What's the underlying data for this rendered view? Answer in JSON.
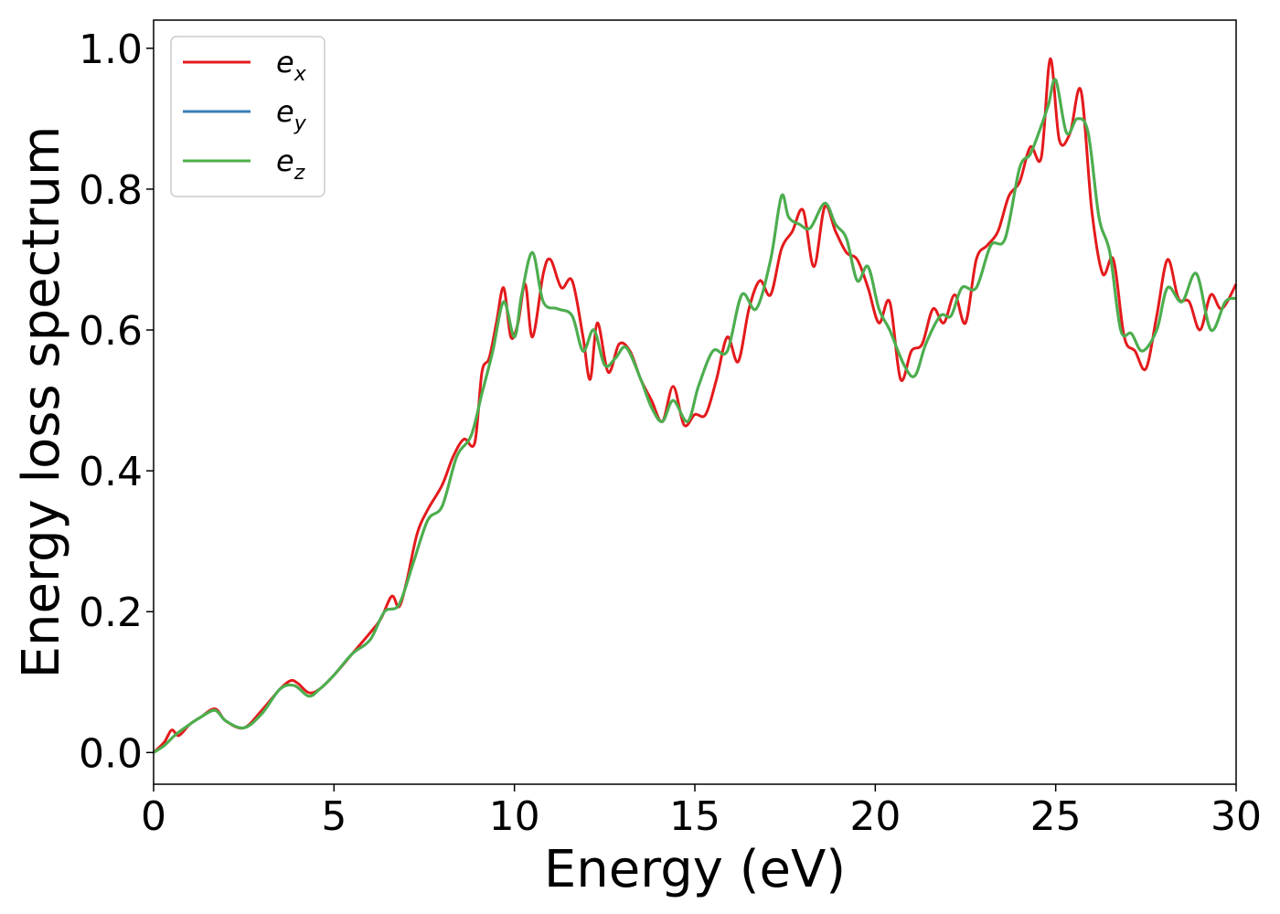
{
  "chart_data": {
    "type": "line",
    "title": "",
    "xlabel": "Energy (eV)",
    "ylabel": "Energy loss spectrum",
    "xlim": [
      0,
      30
    ],
    "ylim": [
      -0.045,
      1.04
    ],
    "xticks": [
      0,
      5,
      10,
      15,
      20,
      25,
      30
    ],
    "xtick_labels": [
      "0",
      "5",
      "10",
      "15",
      "20",
      "25",
      "30"
    ],
    "yticks": [
      0.0,
      0.2,
      0.4,
      0.6,
      0.8,
      1.0
    ],
    "ytick_labels": [
      "0.0",
      "0.2",
      "0.4",
      "0.6",
      "0.8",
      "1.0"
    ],
    "grid": false,
    "legend_position": "top-left",
    "series": [
      {
        "name": "e_x",
        "base": "e",
        "subscript": "x",
        "color": "#e41a1c",
        "x": [
          0,
          0.3,
          0.5,
          0.7,
          1.0,
          1.3,
          1.7,
          2.0,
          2.5,
          3.0,
          3.5,
          3.8,
          4.0,
          4.3,
          4.6,
          5.0,
          5.5,
          6.0,
          6.3,
          6.6,
          6.8,
          7.0,
          7.3,
          7.6,
          8.0,
          8.3,
          8.6,
          8.9,
          9.1,
          9.3,
          9.5,
          9.7,
          9.9,
          10.1,
          10.3,
          10.5,
          10.8,
          11.0,
          11.3,
          11.6,
          11.9,
          12.1,
          12.3,
          12.6,
          12.9,
          13.2,
          13.5,
          13.8,
          14.1,
          14.4,
          14.7,
          15.0,
          15.3,
          15.6,
          15.9,
          16.2,
          16.5,
          16.8,
          17.1,
          17.4,
          17.7,
          18.0,
          18.3,
          18.6,
          18.9,
          19.2,
          19.5,
          19.8,
          20.1,
          20.4,
          20.7,
          21.0,
          21.3,
          21.6,
          21.9,
          22.2,
          22.5,
          22.8,
          23.1,
          23.4,
          23.7,
          24.0,
          24.3,
          24.6,
          24.85,
          25.1,
          25.4,
          25.7,
          26.0,
          26.3,
          26.6,
          26.9,
          27.2,
          27.5,
          27.8,
          28.1,
          28.4,
          28.7,
          29.0,
          29.3,
          29.6,
          30.0
        ],
        "y": [
          0.0,
          0.015,
          0.032,
          0.024,
          0.04,
          0.05,
          0.062,
          0.045,
          0.035,
          0.06,
          0.09,
          0.102,
          0.098,
          0.085,
          0.09,
          0.11,
          0.14,
          0.17,
          0.19,
          0.222,
          0.207,
          0.24,
          0.31,
          0.345,
          0.38,
          0.42,
          0.445,
          0.44,
          0.54,
          0.56,
          0.61,
          0.66,
          0.59,
          0.61,
          0.665,
          0.59,
          0.68,
          0.7,
          0.66,
          0.67,
          0.59,
          0.53,
          0.61,
          0.54,
          0.58,
          0.57,
          0.53,
          0.5,
          0.47,
          0.52,
          0.465,
          0.48,
          0.48,
          0.53,
          0.59,
          0.555,
          0.63,
          0.67,
          0.65,
          0.715,
          0.74,
          0.77,
          0.69,
          0.775,
          0.74,
          0.71,
          0.7,
          0.66,
          0.61,
          0.64,
          0.53,
          0.57,
          0.58,
          0.63,
          0.61,
          0.65,
          0.61,
          0.7,
          0.72,
          0.74,
          0.79,
          0.81,
          0.86,
          0.845,
          0.985,
          0.87,
          0.88,
          0.94,
          0.77,
          0.68,
          0.7,
          0.59,
          0.57,
          0.545,
          0.62,
          0.7,
          0.645,
          0.64,
          0.6,
          0.65,
          0.63,
          0.665
        ]
      },
      {
        "name": "e_y",
        "base": "e",
        "subscript": "y",
        "color": "#377eb8",
        "x": [
          0,
          0.3,
          0.6,
          1.0,
          1.3,
          1.7,
          2.0,
          2.5,
          3.0,
          3.5,
          3.9,
          4.3,
          4.6,
          5.0,
          5.5,
          6.0,
          6.4,
          6.8,
          7.2,
          7.6,
          8.0,
          8.4,
          8.8,
          9.1,
          9.4,
          9.7,
          10.0,
          10.2,
          10.5,
          10.8,
          11.2,
          11.6,
          11.9,
          12.2,
          12.5,
          12.8,
          13.1,
          13.5,
          13.8,
          14.1,
          14.4,
          14.8,
          15.1,
          15.5,
          15.9,
          16.3,
          16.7,
          17.1,
          17.4,
          17.6,
          17.9,
          18.2,
          18.6,
          18.9,
          19.2,
          19.5,
          19.8,
          20.1,
          20.4,
          20.8,
          21.1,
          21.4,
          21.8,
          22.1,
          22.4,
          22.8,
          23.2,
          23.6,
          24.0,
          24.3,
          24.6,
          24.8,
          25.0,
          25.3,
          25.6,
          25.9,
          26.2,
          26.5,
          26.8,
          27.1,
          27.4,
          27.8,
          28.1,
          28.5,
          28.9,
          29.3,
          29.7,
          30.0
        ],
        "y": [
          0.0,
          0.01,
          0.025,
          0.04,
          0.05,
          0.06,
          0.045,
          0.035,
          0.055,
          0.09,
          0.095,
          0.08,
          0.09,
          0.11,
          0.14,
          0.16,
          0.2,
          0.21,
          0.27,
          0.33,
          0.35,
          0.42,
          0.45,
          0.51,
          0.57,
          0.64,
          0.59,
          0.65,
          0.71,
          0.64,
          0.63,
          0.62,
          0.57,
          0.6,
          0.55,
          0.56,
          0.575,
          0.53,
          0.49,
          0.47,
          0.5,
          0.47,
          0.52,
          0.57,
          0.57,
          0.65,
          0.63,
          0.7,
          0.79,
          0.76,
          0.75,
          0.745,
          0.78,
          0.75,
          0.73,
          0.67,
          0.69,
          0.63,
          0.6,
          0.55,
          0.535,
          0.58,
          0.62,
          0.62,
          0.66,
          0.66,
          0.72,
          0.73,
          0.83,
          0.85,
          0.89,
          0.92,
          0.955,
          0.88,
          0.9,
          0.88,
          0.76,
          0.71,
          0.6,
          0.595,
          0.57,
          0.6,
          0.66,
          0.64,
          0.68,
          0.6,
          0.64,
          0.645
        ]
      },
      {
        "name": "e_z",
        "base": "e",
        "subscript": "z",
        "color": "#4daf4a",
        "x": [
          0,
          0.3,
          0.6,
          1.0,
          1.3,
          1.7,
          2.0,
          2.5,
          3.0,
          3.5,
          3.9,
          4.3,
          4.6,
          5.0,
          5.5,
          6.0,
          6.4,
          6.8,
          7.2,
          7.6,
          8.0,
          8.4,
          8.8,
          9.1,
          9.4,
          9.7,
          10.0,
          10.2,
          10.5,
          10.8,
          11.2,
          11.6,
          11.9,
          12.2,
          12.5,
          12.8,
          13.1,
          13.5,
          13.8,
          14.1,
          14.4,
          14.8,
          15.1,
          15.5,
          15.9,
          16.3,
          16.7,
          17.1,
          17.4,
          17.6,
          17.9,
          18.2,
          18.6,
          18.9,
          19.2,
          19.5,
          19.8,
          20.1,
          20.4,
          20.8,
          21.1,
          21.4,
          21.8,
          22.1,
          22.4,
          22.8,
          23.2,
          23.6,
          24.0,
          24.3,
          24.6,
          24.8,
          25.0,
          25.3,
          25.6,
          25.9,
          26.2,
          26.5,
          26.8,
          27.1,
          27.4,
          27.8,
          28.1,
          28.5,
          28.9,
          29.3,
          29.7,
          30.0
        ],
        "y": [
          0.0,
          0.01,
          0.025,
          0.04,
          0.05,
          0.06,
          0.045,
          0.035,
          0.055,
          0.09,
          0.095,
          0.08,
          0.09,
          0.11,
          0.14,
          0.16,
          0.2,
          0.21,
          0.27,
          0.33,
          0.35,
          0.42,
          0.45,
          0.51,
          0.57,
          0.64,
          0.59,
          0.65,
          0.71,
          0.64,
          0.63,
          0.62,
          0.57,
          0.6,
          0.55,
          0.56,
          0.575,
          0.53,
          0.49,
          0.47,
          0.5,
          0.47,
          0.52,
          0.57,
          0.57,
          0.65,
          0.63,
          0.7,
          0.79,
          0.76,
          0.75,
          0.745,
          0.78,
          0.75,
          0.73,
          0.67,
          0.69,
          0.63,
          0.6,
          0.55,
          0.535,
          0.58,
          0.62,
          0.62,
          0.66,
          0.66,
          0.72,
          0.73,
          0.83,
          0.85,
          0.89,
          0.92,
          0.955,
          0.88,
          0.9,
          0.88,
          0.76,
          0.71,
          0.6,
          0.595,
          0.57,
          0.6,
          0.66,
          0.64,
          0.68,
          0.6,
          0.64,
          0.645
        ]
      }
    ]
  }
}
